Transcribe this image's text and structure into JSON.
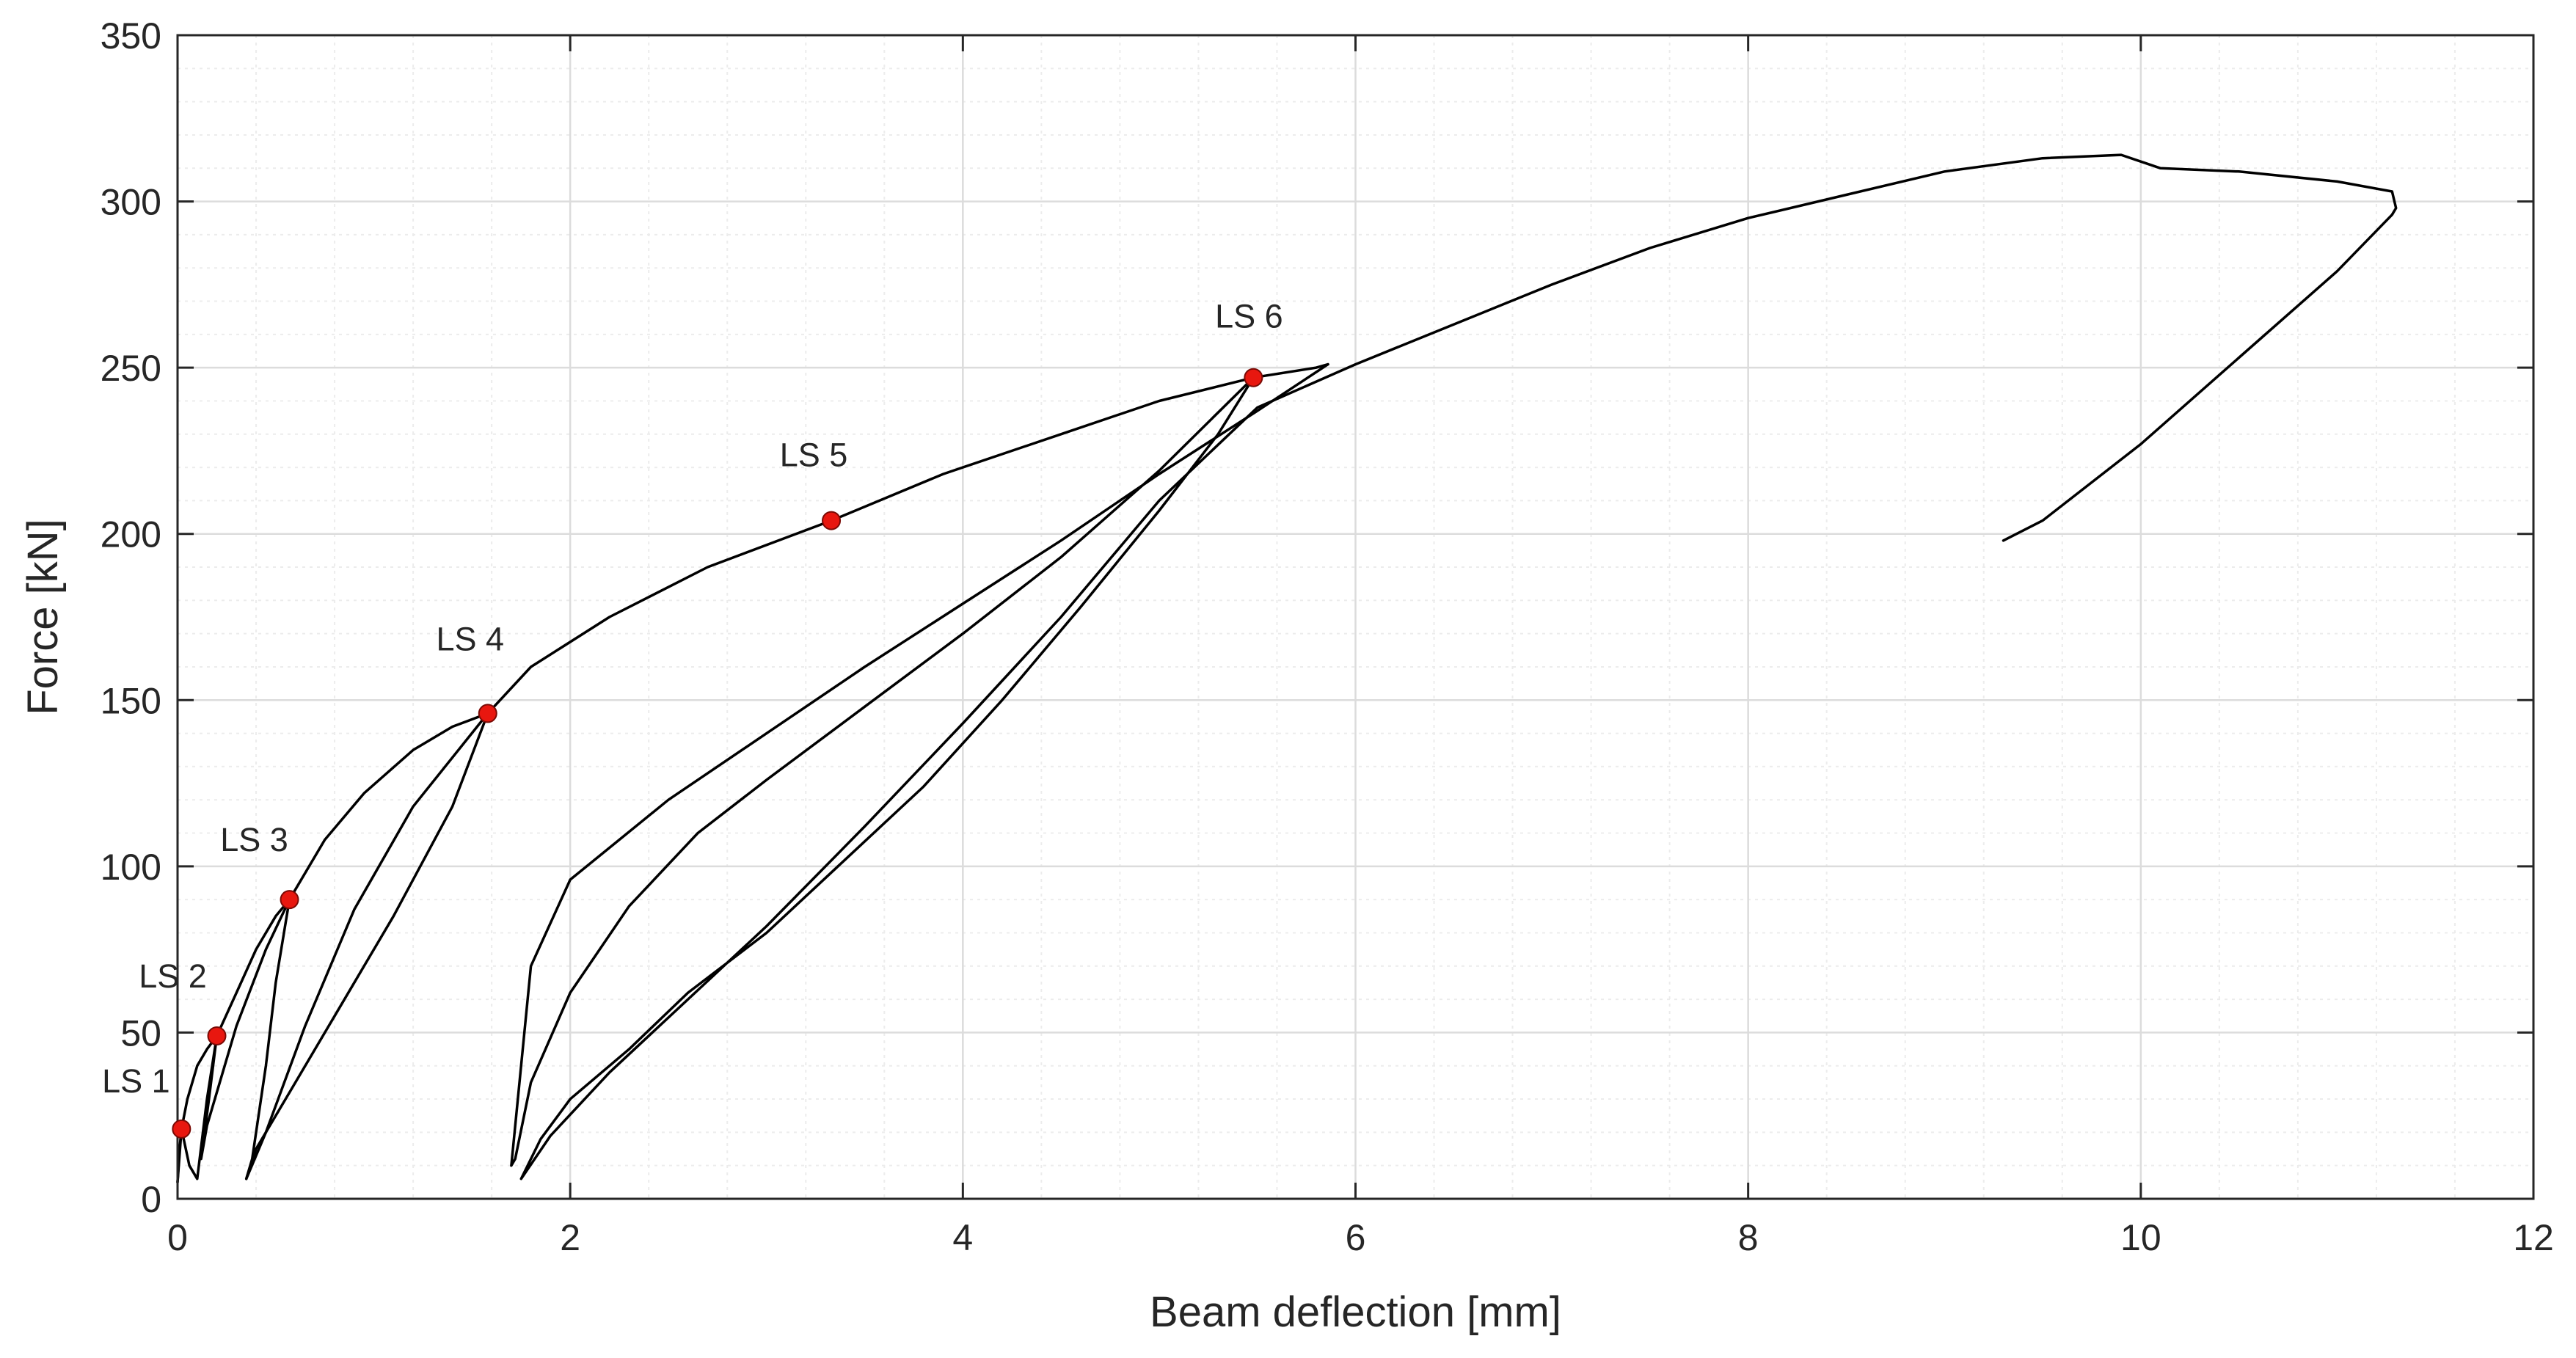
{
  "chart_data": {
    "type": "line",
    "title": "",
    "xlabel": "Beam deflection [mm]",
    "ylabel": "Force [kN]",
    "xlim": [
      0,
      12
    ],
    "ylim": [
      0,
      350
    ],
    "xticks": [
      0,
      2,
      4,
      6,
      8,
      10,
      12
    ],
    "yticks": [
      0,
      50,
      100,
      150,
      200,
      250,
      300,
      350
    ],
    "xtick_labels": [
      "0",
      "2",
      "4",
      "6",
      "8",
      "10",
      "12"
    ],
    "ytick_labels": [
      "0",
      "50",
      "100",
      "150",
      "200",
      "250",
      "300",
      "350"
    ],
    "grid": "major and minor",
    "legend": "none",
    "colors": {
      "curve": "#000000",
      "marker": "#e8170f",
      "axes": "#262626",
      "major_grid": "#dcdcdc",
      "minor_grid": "#ececec"
    },
    "series": [
      {
        "x": [
          0.0,
          0.02,
          0.05,
          0.1,
          0.15,
          0.2,
          0.3,
          0.4,
          0.5,
          0.57,
          0.75,
          0.95,
          1.2,
          1.4,
          1.58,
          1.8,
          2.2,
          2.7,
          3.33,
          3.9,
          4.5,
          5.0,
          5.48,
          5.8,
          5.86
        ],
        "y": [
          5,
          21,
          30,
          40,
          45,
          49,
          62,
          75,
          85,
          90,
          108,
          122,
          135,
          142,
          146,
          160,
          175,
          190,
          204,
          218,
          230,
          240,
          247,
          250,
          251
        ]
      },
      {
        "x": [
          5.86,
          5.5,
          5.0,
          4.5,
          4.0,
          3.5,
          3.0,
          2.5,
          2.0,
          1.8,
          1.7,
          1.72,
          1.8,
          2.0,
          2.3,
          2.65,
          3.0,
          3.5,
          4.0,
          4.5,
          5.0,
          5.48
        ],
        "y": [
          251,
          237,
          218,
          198,
          179,
          160,
          140,
          120,
          96,
          70,
          10,
          12,
          35,
          62,
          88,
          110,
          126,
          148,
          170,
          193,
          219,
          247
        ]
      },
      {
        "x": [
          5.48,
          5.3,
          5.0,
          4.6,
          4.2,
          3.8,
          3.4,
          3.0,
          2.6,
          2.3,
          2.0,
          1.85,
          1.75,
          1.9,
          2.2,
          2.6,
          3.0,
          3.5,
          4.0,
          4.5,
          5.0,
          5.5,
          6.0,
          6.5,
          7.0,
          7.5,
          8.0,
          8.5,
          9.0,
          9.5,
          9.9,
          10.1,
          10.5,
          11.0,
          11.28,
          11.3,
          11.28,
          11.0,
          10.5,
          10.0,
          9.5,
          9.3
        ],
        "y": [
          247,
          230,
          207,
          178,
          150,
          124,
          102,
          80,
          62,
          45,
          30,
          18,
          6,
          19,
          38,
          60,
          82,
          112,
          143,
          175,
          210,
          238,
          251,
          263,
          275,
          286,
          295,
          302,
          309,
          313,
          314,
          310,
          309,
          306,
          303,
          298,
          296,
          279,
          253,
          227,
          204,
          198
        ]
      },
      {
        "x": [
          0.0,
          0.005,
          0.01,
          0.02
        ],
        "y": [
          5,
          10,
          15,
          21
        ]
      },
      {
        "x": [
          0.02,
          0.06,
          0.1,
          0.15,
          0.2
        ],
        "y": [
          21,
          10,
          6,
          30,
          49
        ]
      },
      {
        "x": [
          0.2,
          0.16,
          0.12,
          0.15,
          0.3,
          0.45,
          0.57
        ],
        "y": [
          49,
          30,
          12,
          22,
          52,
          75,
          90
        ]
      },
      {
        "x": [
          0.57,
          0.5,
          0.45,
          0.38,
          0.35,
          0.45,
          0.65,
          0.9,
          1.2,
          1.58
        ],
        "y": [
          90,
          65,
          40,
          12,
          6,
          20,
          52,
          87,
          118,
          146
        ]
      },
      {
        "x": [
          1.58,
          1.4,
          1.1,
          0.8,
          0.55,
          0.4,
          0.35
        ],
        "y": [
          146,
          118,
          85,
          55,
          30,
          15,
          6
        ]
      }
    ],
    "markers": [
      {
        "label": "LS 1",
        "x": 0.02,
        "y": 21
      },
      {
        "label": "LS 2",
        "x": 0.2,
        "y": 49
      },
      {
        "label": "LS 3",
        "x": 0.57,
        "y": 90
      },
      {
        "label": "LS 4",
        "x": 1.58,
        "y": 146
      },
      {
        "label": "LS 5",
        "x": 3.33,
        "y": 204
      },
      {
        "label": "LS 6",
        "x": 5.48,
        "y": 247
      }
    ]
  }
}
